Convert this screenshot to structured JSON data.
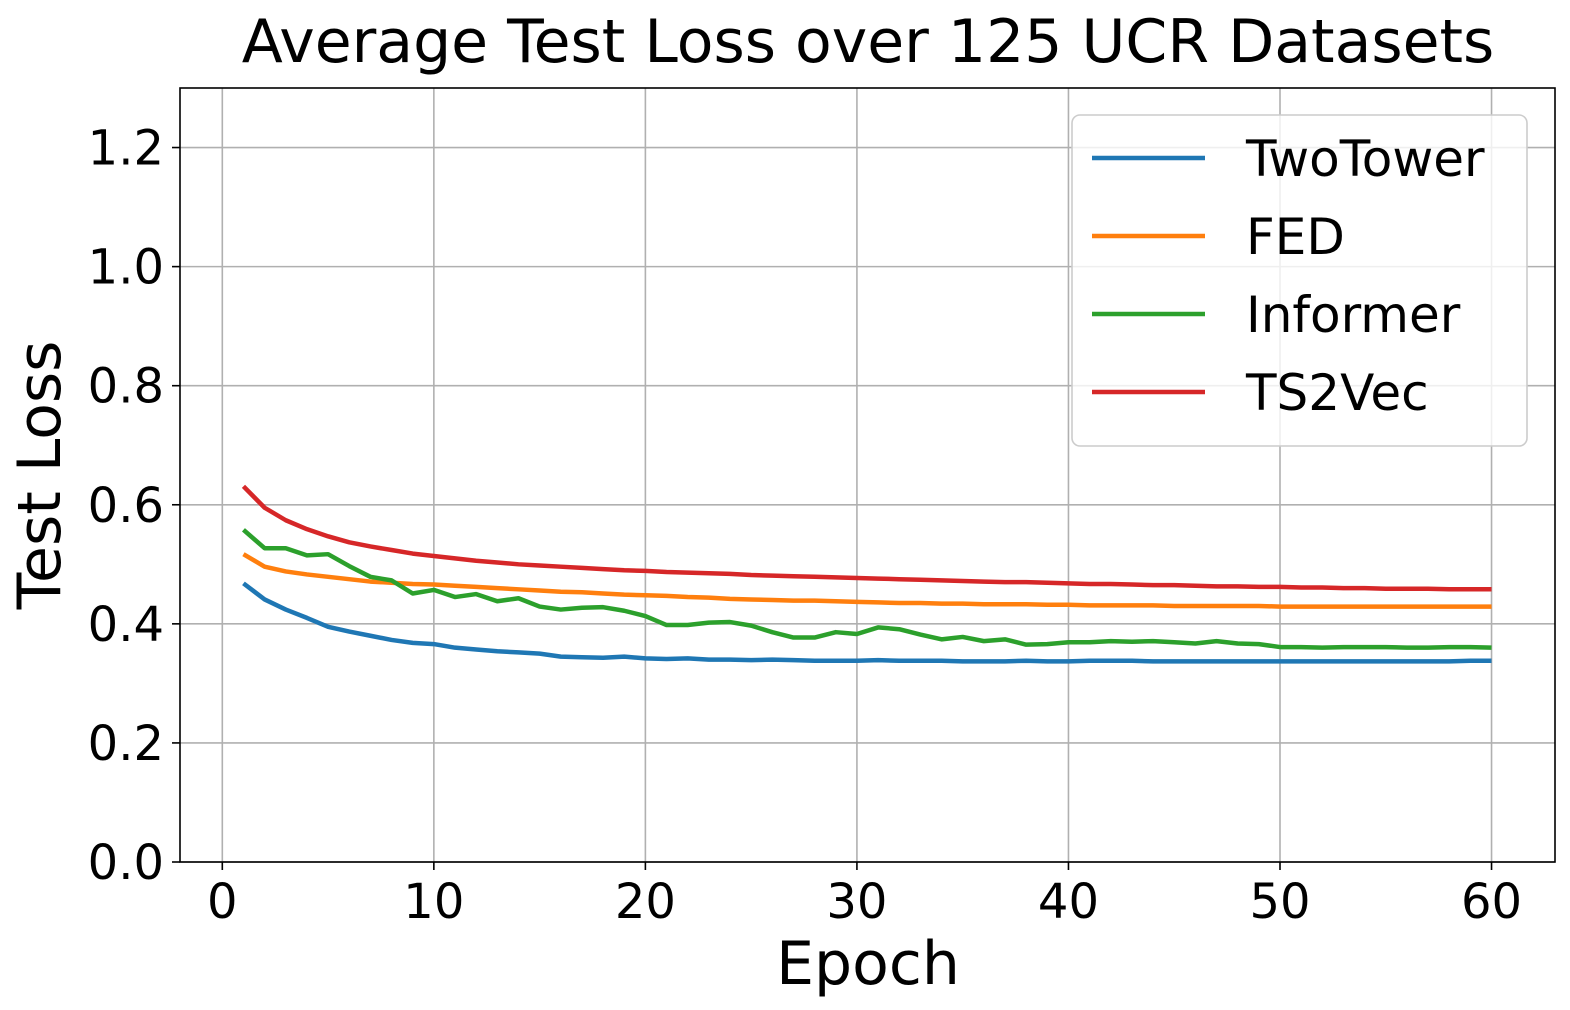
{
  "chart_data": {
    "type": "line",
    "title": "Average Test Loss over 125 UCR Datasets",
    "xlabel": "Epoch",
    "ylabel": "Test Loss",
    "xlim": [
      -2,
      63
    ],
    "ylim": [
      0,
      1.3
    ],
    "xticks": [
      0,
      10,
      20,
      30,
      40,
      50,
      60
    ],
    "yticks": [
      0.0,
      0.2,
      0.4,
      0.6,
      0.8,
      1.0,
      1.2
    ],
    "xtick_labels": [
      "0",
      "10",
      "20",
      "30",
      "40",
      "50",
      "60"
    ],
    "ytick_labels": [
      "0.0",
      "0.2",
      "0.4",
      "0.6",
      "0.8",
      "1.0",
      "1.2"
    ],
    "grid": true,
    "legend_position": "top-right",
    "x": [
      1,
      2,
      3,
      4,
      5,
      6,
      7,
      8,
      9,
      10,
      11,
      12,
      13,
      14,
      15,
      16,
      17,
      18,
      19,
      20,
      21,
      22,
      23,
      24,
      25,
      26,
      27,
      28,
      29,
      30,
      31,
      32,
      33,
      34,
      35,
      36,
      37,
      38,
      39,
      40,
      41,
      42,
      43,
      44,
      45,
      46,
      47,
      48,
      49,
      50,
      51,
      52,
      53,
      54,
      55,
      56,
      57,
      58,
      59,
      60
    ],
    "series": [
      {
        "name": "TwoTower",
        "color": "#1f77b4",
        "values": [
          0.468,
          0.441,
          0.424,
          0.41,
          0.395,
          0.387,
          0.38,
          0.373,
          0.368,
          0.366,
          0.36,
          0.357,
          0.354,
          0.352,
          0.35,
          0.345,
          0.344,
          0.343,
          0.345,
          0.342,
          0.341,
          0.342,
          0.34,
          0.34,
          0.339,
          0.34,
          0.339,
          0.338,
          0.338,
          0.338,
          0.339,
          0.338,
          0.338,
          0.338,
          0.337,
          0.337,
          0.337,
          0.338,
          0.337,
          0.337,
          0.338,
          0.338,
          0.338,
          0.337,
          0.337,
          0.337,
          0.337,
          0.337,
          0.337,
          0.337,
          0.337,
          0.337,
          0.337,
          0.337,
          0.337,
          0.337,
          0.337,
          0.337,
          0.338,
          0.338
        ]
      },
      {
        "name": "FED",
        "color": "#ff7f0e",
        "values": [
          0.517,
          0.496,
          0.488,
          0.483,
          0.479,
          0.475,
          0.471,
          0.469,
          0.467,
          0.466,
          0.464,
          0.462,
          0.46,
          0.458,
          0.456,
          0.454,
          0.453,
          0.451,
          0.449,
          0.448,
          0.447,
          0.445,
          0.444,
          0.442,
          0.441,
          0.44,
          0.439,
          0.439,
          0.438,
          0.437,
          0.436,
          0.435,
          0.435,
          0.434,
          0.434,
          0.433,
          0.433,
          0.433,
          0.432,
          0.432,
          0.431,
          0.431,
          0.431,
          0.431,
          0.43,
          0.43,
          0.43,
          0.43,
          0.43,
          0.429,
          0.429,
          0.429,
          0.429,
          0.429,
          0.429,
          0.429,
          0.429,
          0.429,
          0.429,
          0.429
        ]
      },
      {
        "name": "Informer",
        "color": "#2ca02c",
        "values": [
          0.558,
          0.527,
          0.527,
          0.515,
          0.517,
          0.497,
          0.479,
          0.473,
          0.451,
          0.457,
          0.445,
          0.45,
          0.438,
          0.443,
          0.429,
          0.424,
          0.427,
          0.428,
          0.422,
          0.413,
          0.398,
          0.398,
          0.402,
          0.403,
          0.397,
          0.386,
          0.377,
          0.377,
          0.386,
          0.383,
          0.394,
          0.391,
          0.382,
          0.374,
          0.378,
          0.371,
          0.374,
          0.365,
          0.366,
          0.369,
          0.369,
          0.371,
          0.37,
          0.371,
          0.369,
          0.367,
          0.371,
          0.367,
          0.366,
          0.361,
          0.361,
          0.36,
          0.361,
          0.361,
          0.361,
          0.36,
          0.36,
          0.361,
          0.361,
          0.36
        ]
      },
      {
        "name": "TS2Vec",
        "color": "#d62728",
        "values": [
          0.631,
          0.595,
          0.574,
          0.559,
          0.547,
          0.537,
          0.53,
          0.524,
          0.518,
          0.514,
          0.51,
          0.506,
          0.503,
          0.5,
          0.498,
          0.496,
          0.494,
          0.492,
          0.49,
          0.489,
          0.487,
          0.486,
          0.485,
          0.484,
          0.482,
          0.481,
          0.48,
          0.479,
          0.478,
          0.477,
          0.476,
          0.475,
          0.474,
          0.473,
          0.472,
          0.471,
          0.47,
          0.47,
          0.469,
          0.468,
          0.467,
          0.467,
          0.466,
          0.465,
          0.465,
          0.464,
          0.463,
          0.463,
          0.462,
          0.462,
          0.461,
          0.461,
          0.46,
          0.46,
          0.459,
          0.459,
          0.459,
          0.458,
          0.458,
          0.458
        ]
      }
    ]
  }
}
